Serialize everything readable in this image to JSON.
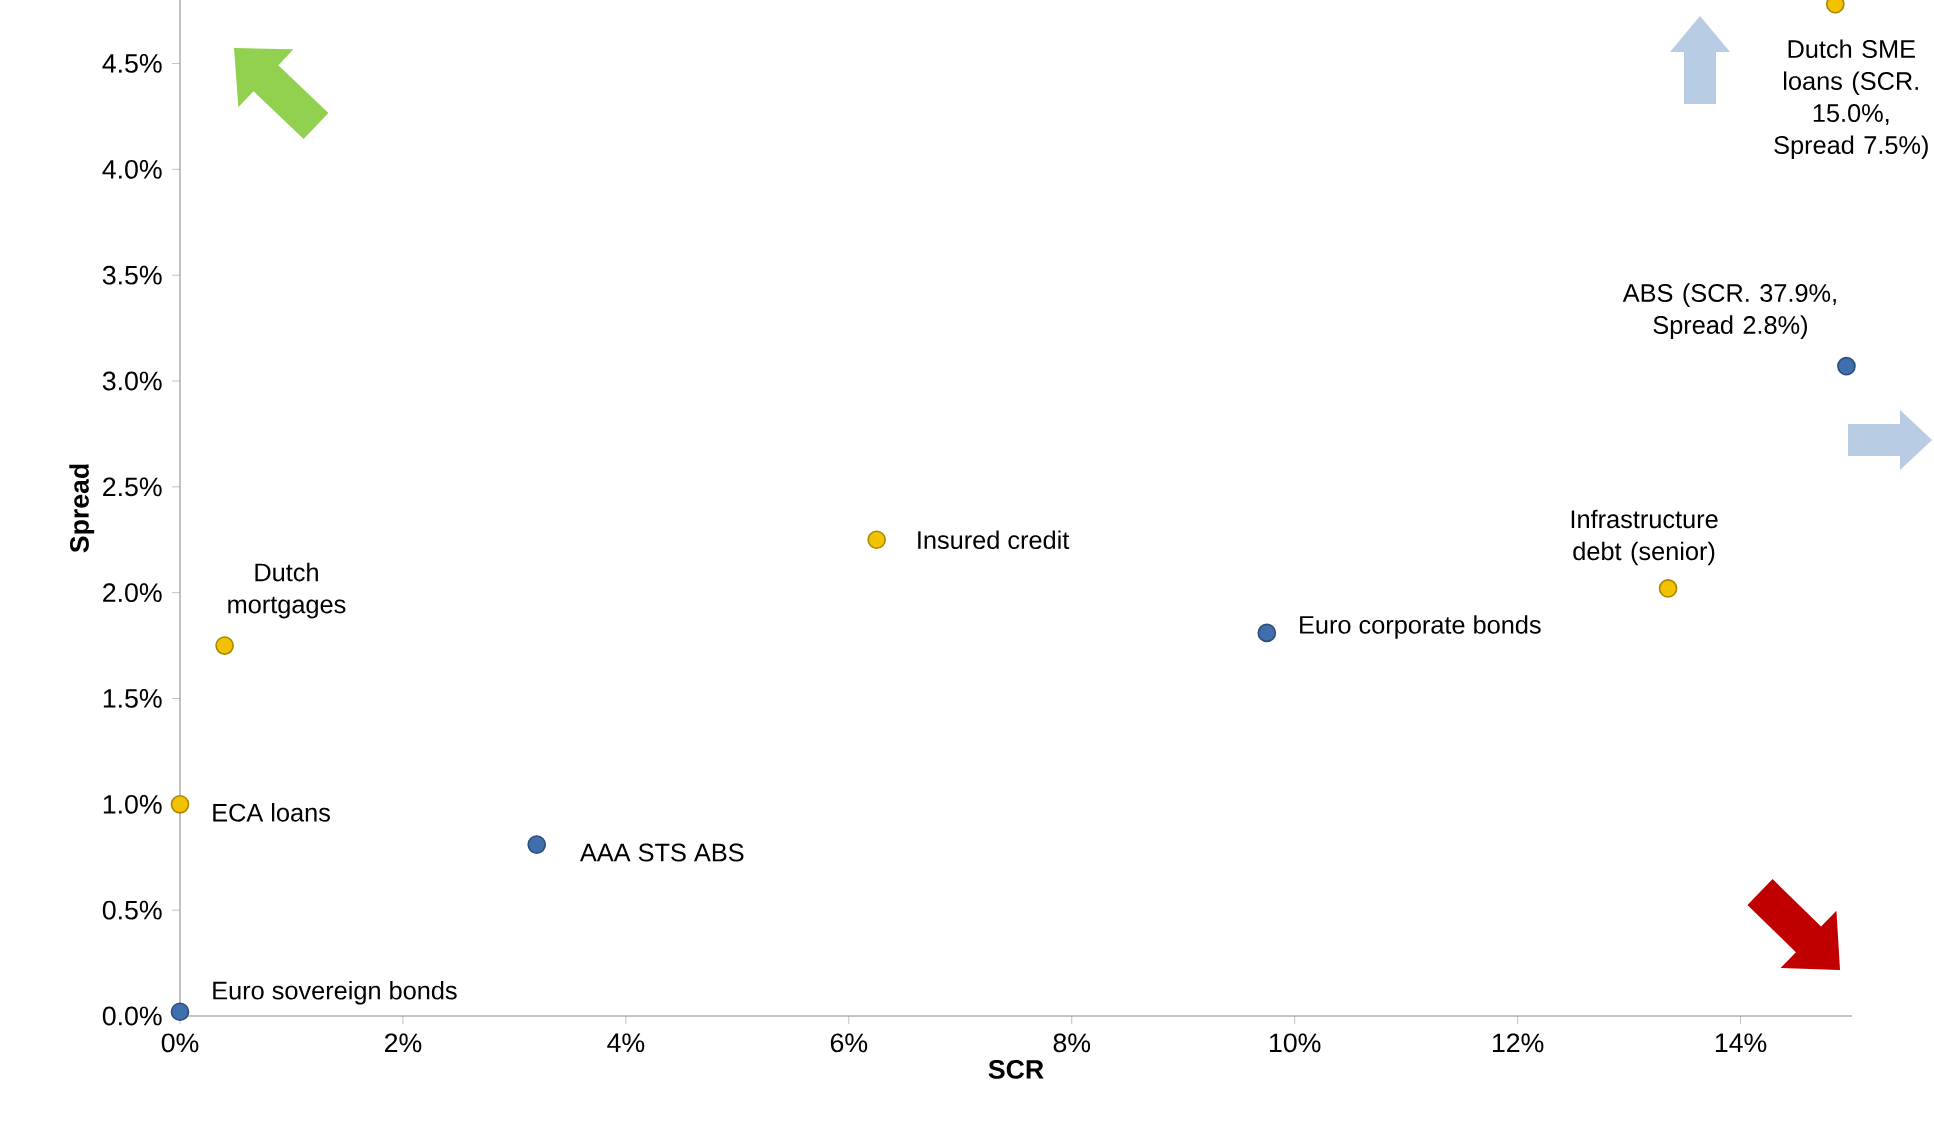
{
  "chart_data": {
    "type": "scatter",
    "xlabel": "SCR",
    "ylabel": "Spread",
    "marker": "circle",
    "xlim": [
      0,
      15
    ],
    "ylim": [
      0,
      4.8
    ],
    "xticks": [
      {
        "value": 0,
        "label": "0%"
      },
      {
        "value": 2,
        "label": "2%"
      },
      {
        "value": 4,
        "label": "4%"
      },
      {
        "value": 6,
        "label": "6%"
      },
      {
        "value": 8,
        "label": "8%"
      },
      {
        "value": 10,
        "label": "10%"
      },
      {
        "value": 12,
        "label": "12%"
      },
      {
        "value": 14,
        "label": "14%"
      }
    ],
    "yticks": [
      {
        "value": 0,
        "label": "0.0%"
      },
      {
        "value": 0.5,
        "label": "0.5%"
      },
      {
        "value": 1,
        "label": "1.0%"
      },
      {
        "value": 1.5,
        "label": "1.5%"
      },
      {
        "value": 2,
        "label": "2.0%"
      },
      {
        "value": 2.5,
        "label": "2.5%"
      },
      {
        "value": 3,
        "label": "3.0%"
      },
      {
        "value": 3.5,
        "label": "3.5%"
      },
      {
        "value": 4,
        "label": "4.0%"
      },
      {
        "value": 4.5,
        "label": "4.5%"
      }
    ],
    "series": [
      {
        "color": "#3f6fad",
        "x": [
          0,
          3.2,
          9.75,
          14.95
        ],
        "values": [
          0.02,
          0.81,
          1.81,
          3.07
        ]
      },
      {
        "color": "#f2c200",
        "x": [
          0,
          0.4,
          6.25,
          13.35,
          14.85
        ],
        "values": [
          1.0,
          1.75,
          2.25,
          2.02,
          4.78
        ]
      }
    ],
    "annotations": [
      {
        "text": "Euro sovereign bonds",
        "x": 0,
        "y": 0.02
      },
      {
        "text": "ECA loans",
        "x": 0,
        "y": 1.0
      },
      {
        "text": "Dutch mortgages",
        "x": 0.4,
        "y": 1.75
      },
      {
        "text": "AAA STS ABS",
        "x": 3.2,
        "y": 0.81
      },
      {
        "text": "Insured credit",
        "x": 6.25,
        "y": 2.25
      },
      {
        "text": "Euro corporate bonds",
        "x": 9.75,
        "y": 1.81
      },
      {
        "text": "Infrastructure debt (senior)",
        "x": 13.35,
        "y": 2.02
      },
      {
        "text": "ABS (SCR. 37.9%, Spread 2.8%)",
        "x": 14.95,
        "y": 3.07
      },
      {
        "text": "Dutch SME loans (SCR. 15.0%, Spread 7.5%)",
        "x": 14.85,
        "y": 4.78
      }
    ]
  }
}
